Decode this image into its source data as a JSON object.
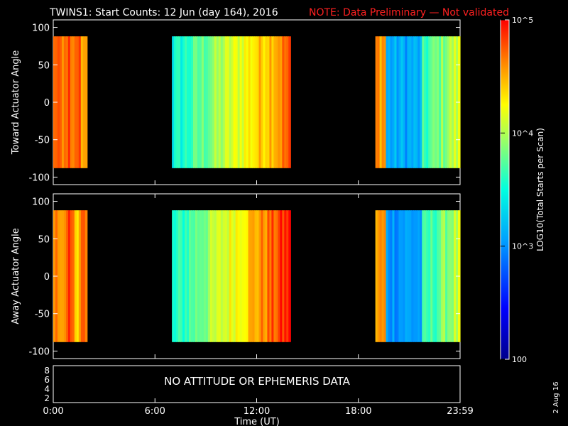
{
  "chart_data": [
    {
      "type": "heatmap",
      "panel": "toward",
      "title": "TWINS1: Start Counts: 12 Jun (day 164), 2016",
      "note": "NOTE: Data Preliminary — Not validated",
      "ylabel": "Toward Actuator Angle",
      "ylim": [
        -110,
        110
      ],
      "yticks": [
        100,
        50,
        0,
        -50,
        -100
      ],
      "xlim": [
        0,
        24
      ],
      "data_y_range": [
        -88,
        88
      ],
      "segments": [
        {
          "start": 0.0,
          "end": 2.0,
          "log10_level": 4.75,
          "character": "mostly high counts (red/orange)"
        },
        {
          "start": 7.0,
          "end": 14.0,
          "log10_level": 4.1,
          "character": "rising from cyan to orange"
        },
        {
          "start": 19.0,
          "end": 24.0,
          "log10_level": 3.6,
          "character": "orange then blue then cyan"
        }
      ]
    },
    {
      "type": "heatmap",
      "panel": "away",
      "ylabel": "Away Actuator Angle",
      "ylim": [
        -110,
        110
      ],
      "yticks": [
        100,
        50,
        0,
        -50,
        -100
      ],
      "xlim": [
        0,
        24
      ],
      "data_y_range": [
        -88,
        88
      ],
      "segments": [
        {
          "start": 0.0,
          "end": 2.0,
          "log10_level": 4.7
        },
        {
          "start": 7.0,
          "end": 14.0,
          "log10_level": 4.3
        },
        {
          "start": 19.0,
          "end": 24.0,
          "log10_level": 3.6
        }
      ]
    }
  ],
  "bottom_panel": {
    "yticks": [
      "8",
      "6",
      "4",
      "2"
    ],
    "message": "NO ATTITUDE OR EPHEMERIS DATA"
  },
  "xaxis": {
    "ticks": [
      "0:00",
      "6:00",
      "12:00",
      "18:00",
      "23:59"
    ],
    "label": "Time (UT)"
  },
  "colorbar": {
    "label": "LOG10(Total Starts per Scan)",
    "ticks": [
      "10^5",
      "10^4",
      "10^3",
      "100"
    ],
    "range_log10": [
      2,
      5
    ]
  },
  "date_stamp": "2 Aug 16",
  "colors": {
    "background": "#000000",
    "note": "#ff2020",
    "axes": "#ffffff"
  }
}
